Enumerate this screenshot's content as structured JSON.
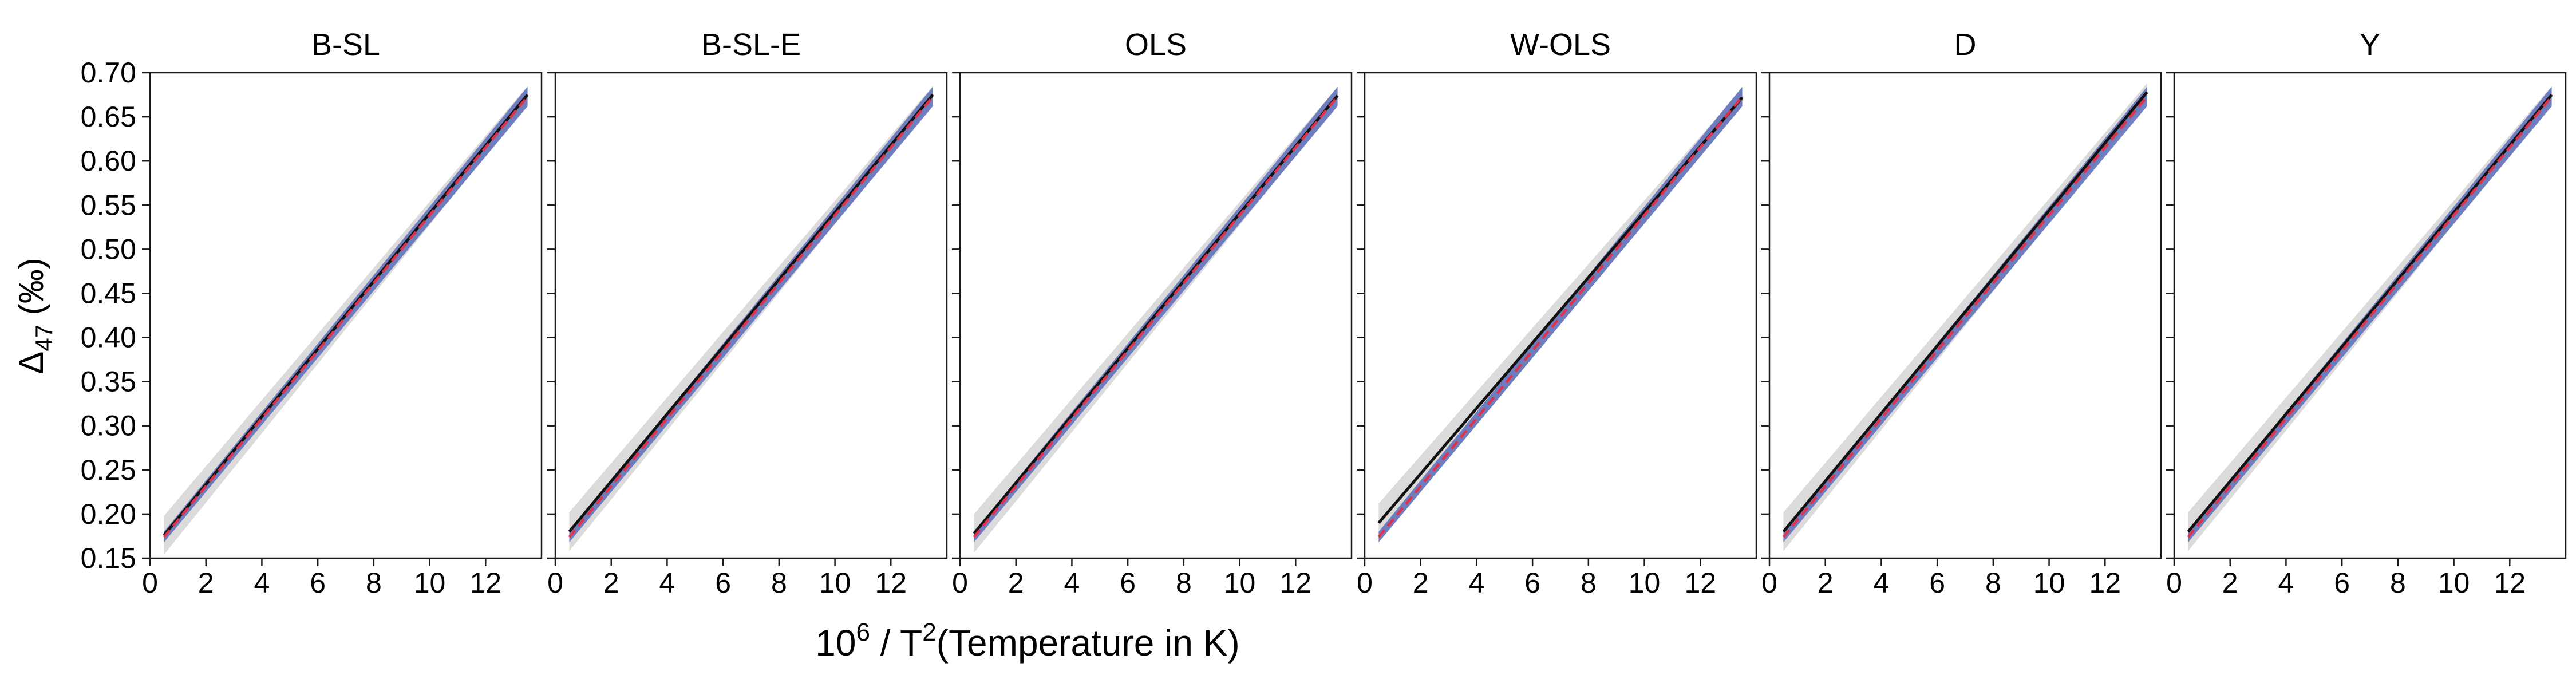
{
  "chart_data": {
    "type": "line",
    "ylabel": {
      "main": "Δ",
      "sub": "47",
      "rest": " (‰)"
    },
    "xlabel": {
      "pre": "10",
      "sup1": "6",
      "mid": " / T",
      "sup2": "2",
      "post": "(Temperature in K)"
    },
    "xlim": [
      0,
      14
    ],
    "ylim": [
      0.15,
      0.7
    ],
    "x_ticks": [
      0,
      2,
      4,
      6,
      8,
      10,
      12
    ],
    "x_tick_labels": [
      "0",
      "2",
      "4",
      "6",
      "8",
      "10",
      "12"
    ],
    "y_ticks": [
      0.15,
      0.2,
      0.25,
      0.3,
      0.35,
      0.4,
      0.45,
      0.5,
      0.55,
      0.6,
      0.65,
      0.7
    ],
    "y_tick_labels": [
      "0.15",
      "0.20",
      "0.25",
      "0.30",
      "0.35",
      "0.40",
      "0.45",
      "0.50",
      "0.55",
      "0.60",
      "0.65",
      "0.70"
    ],
    "colors": {
      "black_line": "#111111",
      "red_dashed": "#e0324a",
      "blue_band": "#5b6cb8",
      "grey_band": "#bdbdbd"
    },
    "panels": [
      {
        "title": "B-SL",
        "black": {
          "x": [
            0.5,
            13.5
          ],
          "y": [
            0.176,
            0.675
          ]
        },
        "red": {
          "x": [
            0.5,
            13.5
          ],
          "y": [
            0.174,
            0.673
          ]
        }
      },
      {
        "title": "B-SL-E",
        "black": {
          "x": [
            0.5,
            13.5
          ],
          "y": [
            0.18,
            0.675
          ]
        },
        "red": {
          "x": [
            0.5,
            13.5
          ],
          "y": [
            0.174,
            0.673
          ]
        }
      },
      {
        "title": "OLS",
        "black": {
          "x": [
            0.5,
            13.5
          ],
          "y": [
            0.178,
            0.674
          ]
        },
        "red": {
          "x": [
            0.5,
            13.5
          ],
          "y": [
            0.174,
            0.673
          ]
        }
      },
      {
        "title": "W-OLS",
        "black": {
          "x": [
            0.5,
            13.5
          ],
          "y": [
            0.19,
            0.672
          ]
        },
        "red": {
          "x": [
            0.5,
            13.5
          ],
          "y": [
            0.174,
            0.673
          ]
        }
      },
      {
        "title": "D",
        "black": {
          "x": [
            0.5,
            13.5
          ],
          "y": [
            0.18,
            0.678
          ]
        },
        "red": {
          "x": [
            0.5,
            13.5
          ],
          "y": [
            0.174,
            0.673
          ]
        }
      },
      {
        "title": "Y",
        "black": {
          "x": [
            0.5,
            13.5
          ],
          "y": [
            0.18,
            0.675
          ]
        },
        "red": {
          "x": [
            0.5,
            13.5
          ],
          "y": [
            0.174,
            0.673
          ]
        }
      }
    ]
  }
}
